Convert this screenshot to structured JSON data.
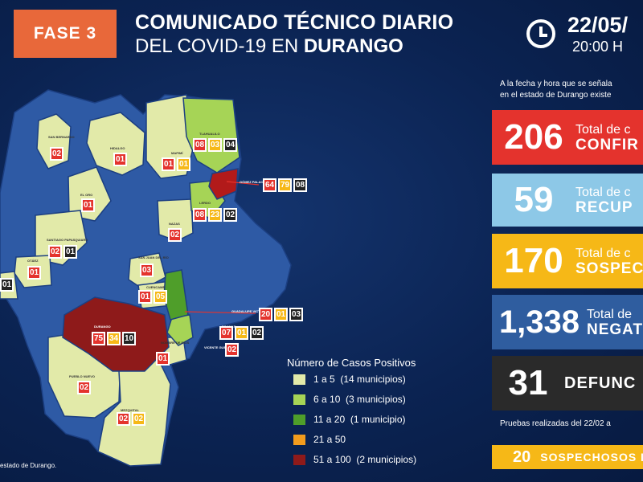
{
  "header": {
    "phase": "FASE 3",
    "title_line1": "COMUNICADO TÉCNICO DIARIO",
    "title_line2_prefix": "DEL COVID-19 EN ",
    "title_line2_bold": "DURANGO",
    "date": "22/05/",
    "time": "20:00 H"
  },
  "intro": {
    "line1": "A la fecha y hora que se señala",
    "line2": "en el estado de Durango existe"
  },
  "stats": [
    {
      "value": "206",
      "label": "Total de c",
      "label_bold": "CONFIR",
      "color": "#e4332d"
    },
    {
      "value": "59",
      "label": "Total de c",
      "label_bold": "RECUP",
      "color": "#8dc8e7"
    },
    {
      "value": "170",
      "label": "Total de c",
      "label_bold": "SOSPEC",
      "color": "#f6b817"
    },
    {
      "value": "1,338",
      "label": "Total de",
      "label_bold": "NEGAT",
      "color": "#2f5d9f"
    },
    {
      "value": "31",
      "label": "",
      "label_bold": "DEFUNC",
      "color": "#2a2a2a"
    }
  ],
  "pruebas": "Pruebas realizadas del 22/02 a",
  "sospechosos_box": {
    "value": "20",
    "label": "SOSPECHOSOS I"
  },
  "legend": {
    "title": "Número de Casos Positivos",
    "items": [
      {
        "range": "1 a 5",
        "count": "(14 municipios)",
        "color": "#e2eaa9"
      },
      {
        "range": "6 a 10",
        "count": "(3 municipios)",
        "color": "#a6d456"
      },
      {
        "range": "11 a 20",
        "count": "(1 municipio)",
        "color": "#4f9e2a"
      },
      {
        "range": "21 a 50",
        "count": "",
        "color": "#f39c1d"
      },
      {
        "range": "51 a 100",
        "count": "(2 municipios)",
        "color": "#8e1a1a"
      }
    ]
  },
  "source": "estado de Durango.",
  "map": {
    "municipality_labels": [
      {
        "name": "SAN BERNARDO"
      },
      {
        "name": "HIDALGO"
      },
      {
        "name": "MAPIMÍ"
      },
      {
        "name": "TLAHUALILO"
      },
      {
        "name": "GÓMEZ PALACIO"
      },
      {
        "name": "LERDO"
      },
      {
        "name": "EL ORO"
      },
      {
        "name": "NAZAS"
      },
      {
        "name": "SANTIAGO PAPASQUIARO"
      },
      {
        "name": "OTÁEZ"
      },
      {
        "name": "SAN JUAN DEL RÍO"
      },
      {
        "name": "CUENCAMÉ"
      },
      {
        "name": "GUADALUPE VICTORIA"
      },
      {
        "name": "DURANGO"
      },
      {
        "name": "POANAS"
      },
      {
        "name": "NOMBRE DE DIOS"
      },
      {
        "name": "VICENTE GUERRERO"
      },
      {
        "name": "PUEBLO NUEVO"
      },
      {
        "name": "MEZQUITAL"
      }
    ],
    "badges": [
      [
        "02"
      ],
      [
        "01"
      ],
      [
        "01",
        "01"
      ],
      [
        "08",
        "03",
        "04"
      ],
      [
        "64",
        "79",
        "08"
      ],
      [
        "08",
        "23",
        "02"
      ],
      [
        "01"
      ],
      [
        "02"
      ],
      [
        "02",
        "01"
      ],
      [
        "01"
      ],
      [
        "03"
      ],
      [
        "01",
        "05"
      ],
      [
        "20",
        "01",
        "03"
      ],
      [
        "75",
        "34",
        "10"
      ],
      [
        "07",
        "01",
        "02"
      ],
      [
        "01"
      ],
      [
        "02"
      ],
      [
        "02"
      ],
      [
        "02",
        "02"
      ],
      [
        "01"
      ]
    ],
    "colors": {
      "default": "#2e5aa5",
      "light": "#e2eaa9",
      "lime": "#a6d456",
      "green": "#4f9e2a",
      "dark_red": "#8e1a1a",
      "red": "#b21a1a"
    }
  }
}
